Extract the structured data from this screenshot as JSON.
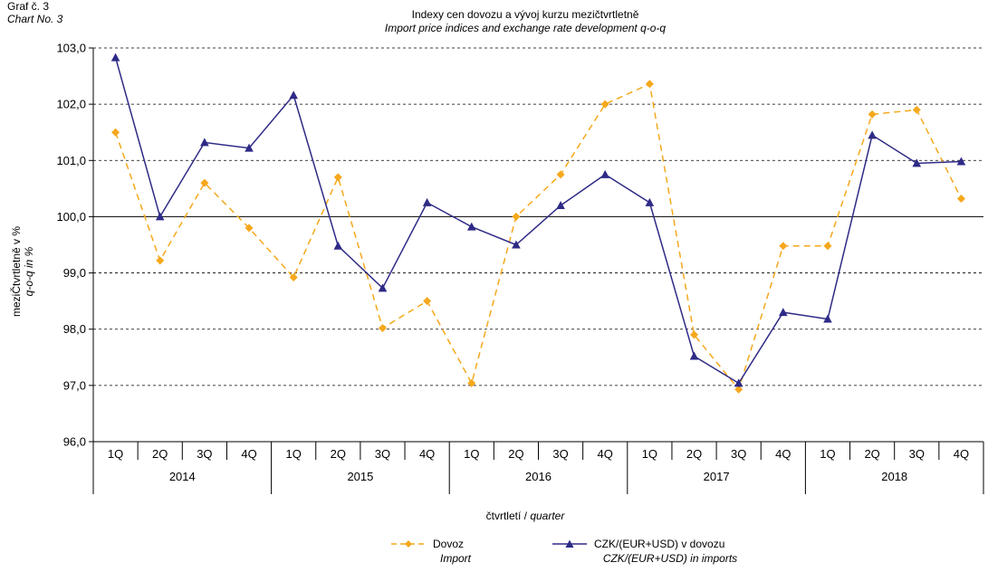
{
  "chart_label": {
    "cz": "Graf č. 3",
    "en": "Chart No. 3"
  },
  "chart_data": {
    "type": "line",
    "title": "Indexy cen dovozu a vývoj kurzu mezičtvrtletně",
    "subtitle": "Import price indices and exchange rate development q-o-q",
    "ylabel": "meziČtvrtletně v %",
    "ylabel_en": "q-o-q in %",
    "xlabel": "čtvrtletí / ",
    "xlabel_en": "quarter",
    "ylim": [
      96.0,
      103.0
    ],
    "yticks": [
      "96,0",
      "97,0",
      "98,0",
      "99,0",
      "100,0",
      "101,0",
      "102,0",
      "103,0"
    ],
    "reference_line": 100.0,
    "grid": true,
    "categories": [
      "1Q",
      "2Q",
      "3Q",
      "4Q",
      "1Q",
      "2Q",
      "3Q",
      "4Q",
      "1Q",
      "2Q",
      "3Q",
      "4Q",
      "1Q",
      "2Q",
      "3Q",
      "4Q",
      "1Q",
      "2Q",
      "3Q",
      "4Q"
    ],
    "years": [
      "2014",
      "2015",
      "2016",
      "2017",
      "2018"
    ],
    "legend_position": "bottom",
    "series": [
      {
        "name": "Dovoz",
        "name_en": "Import",
        "color": "#F5A81C",
        "marker": "diamond",
        "style": "dashed",
        "values": [
          101.5,
          99.22,
          100.6,
          99.8,
          98.92,
          100.7,
          98.02,
          98.5,
          97.04,
          100.0,
          100.75,
          102.0,
          102.36,
          97.9,
          96.93,
          99.48,
          99.48,
          101.82,
          101.9,
          100.32
        ]
      },
      {
        "name": "CZK/(EUR+USD) v dovozu",
        "name_en": "CZK/(EUR+USD) in imports",
        "color": "#2E2A86",
        "marker": "triangle",
        "style": "solid",
        "values": [
          102.83,
          100.0,
          101.32,
          101.22,
          102.16,
          99.48,
          98.73,
          100.25,
          99.82,
          99.5,
          100.2,
          100.75,
          100.25,
          97.52,
          97.04,
          98.3,
          98.18,
          101.45,
          100.95,
          100.98
        ]
      }
    ]
  }
}
